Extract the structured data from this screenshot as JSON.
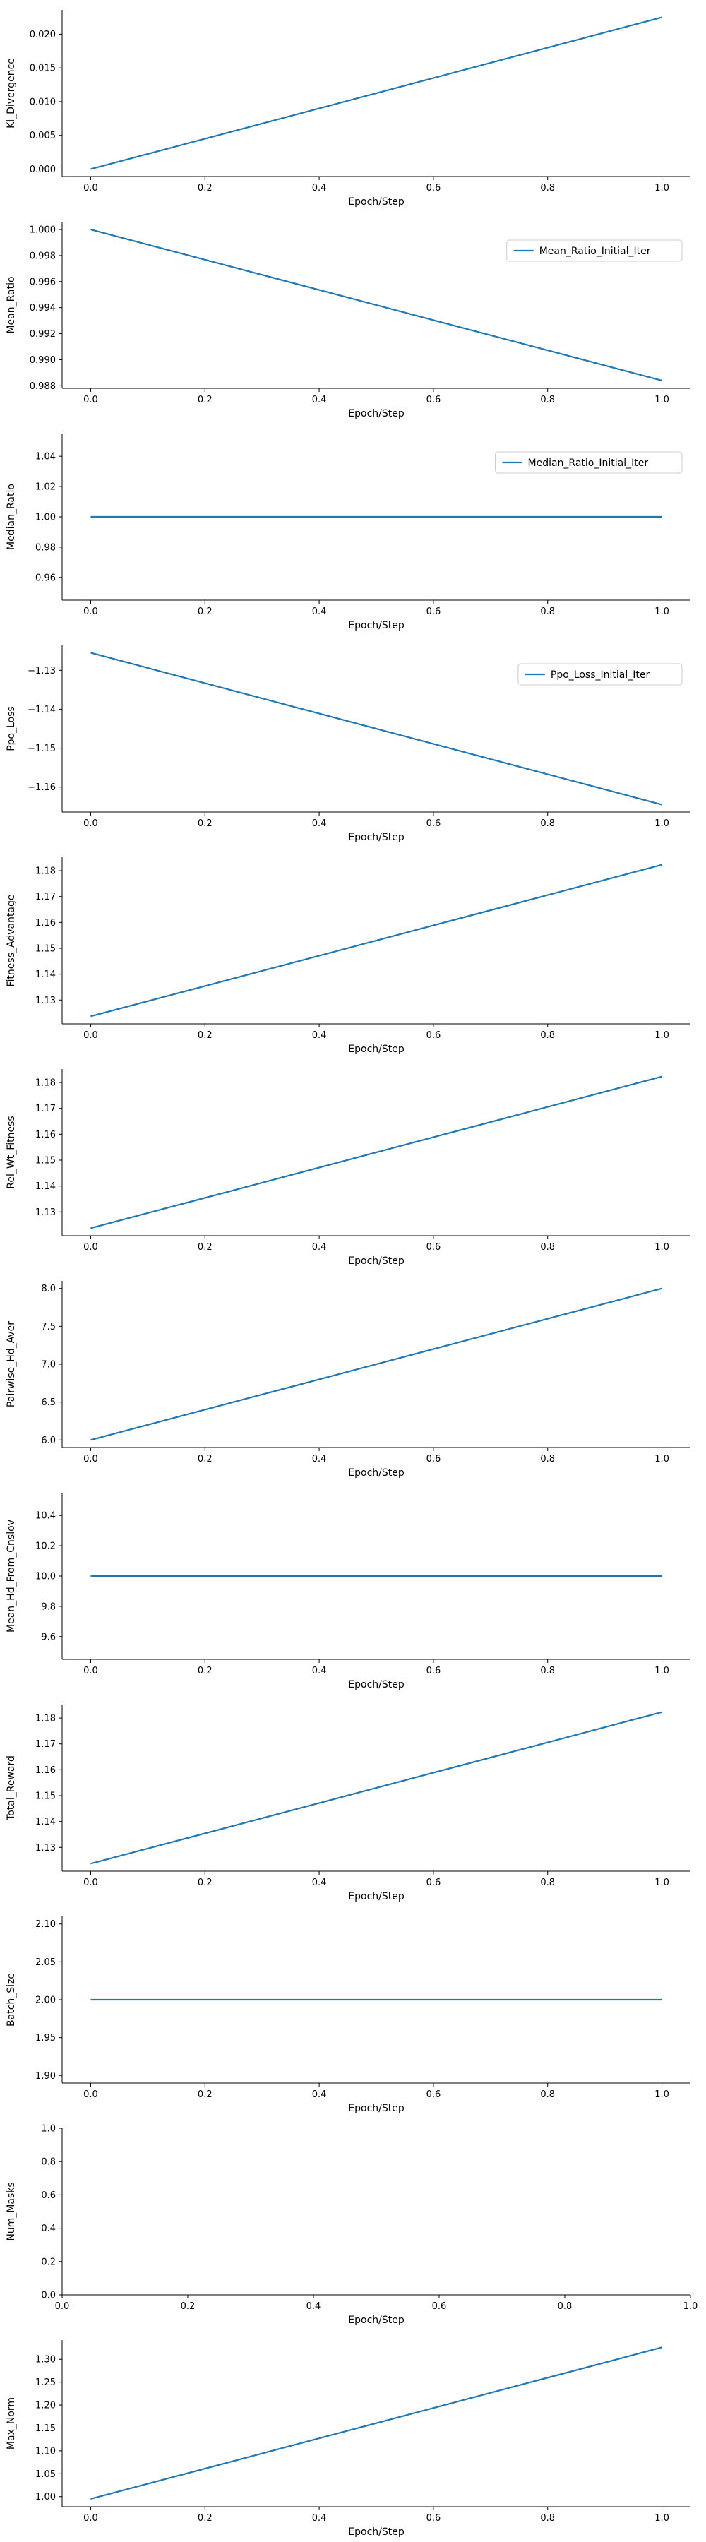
{
  "chart_data": [
    {
      "type": "line",
      "xlabel": "Epoch/Step",
      "ylabel": "Kl_Divergence",
      "xlim": [
        -0.05,
        1.05
      ],
      "ylim": [
        -0.0011,
        0.0236
      ],
      "xticks": [
        0.0,
        0.2,
        0.4,
        0.6,
        0.8,
        1.0
      ],
      "xtick_labels": [
        "0.0",
        "0.2",
        "0.4",
        "0.6",
        "0.8",
        "1.0"
      ],
      "yticks": [
        0.0,
        0.005,
        0.01,
        0.015,
        0.02
      ],
      "ytick_labels": [
        "0.000",
        "0.005",
        "0.010",
        "0.015",
        "0.020"
      ],
      "legend": "",
      "line_color": "#1f77b4",
      "series": [
        {
          "x": [
            0,
            1
          ],
          "y": [
            0.0,
            0.0225
          ]
        }
      ]
    },
    {
      "type": "line",
      "xlabel": "Epoch/Step",
      "ylabel": "Mean_Ratio",
      "xlim": [
        -0.05,
        1.05
      ],
      "ylim": [
        0.9878,
        1.0006
      ],
      "xticks": [
        0.0,
        0.2,
        0.4,
        0.6,
        0.8,
        1.0
      ],
      "xtick_labels": [
        "0.0",
        "0.2",
        "0.4",
        "0.6",
        "0.8",
        "1.0"
      ],
      "yticks": [
        0.988,
        0.99,
        0.992,
        0.994,
        0.996,
        0.998,
        1.0
      ],
      "ytick_labels": [
        "0.988",
        "0.990",
        "0.992",
        "0.994",
        "0.996",
        "0.998",
        "1.000"
      ],
      "legend": "Mean_Ratio_Initial_Iter",
      "legend_position": "top-right",
      "line_color": "#1f77b4",
      "series": [
        {
          "name": "Mean_Ratio_Initial_Iter",
          "x": [
            0,
            1
          ],
          "y": [
            1.0,
            0.9884
          ]
        }
      ]
    },
    {
      "type": "line",
      "xlabel": "Epoch/Step",
      "ylabel": "Median_Ratio",
      "xlim": [
        -0.05,
        1.05
      ],
      "ylim": [
        0.945,
        1.055
      ],
      "xticks": [
        0.0,
        0.2,
        0.4,
        0.6,
        0.8,
        1.0
      ],
      "xtick_labels": [
        "0.0",
        "0.2",
        "0.4",
        "0.6",
        "0.8",
        "1.0"
      ],
      "yticks": [
        0.96,
        0.98,
        1.0,
        1.02,
        1.04
      ],
      "ytick_labels": [
        "0.96",
        "0.98",
        "1.00",
        "1.02",
        "1.04"
      ],
      "legend": "Median_Ratio_Initial_Iter",
      "legend_position": "top-right",
      "line_color": "#1f77b4",
      "series": [
        {
          "name": "Median_Ratio_Initial_Iter",
          "x": [
            0,
            1
          ],
          "y": [
            1.0,
            1.0
          ]
        }
      ]
    },
    {
      "type": "line",
      "xlabel": "Epoch/Step",
      "ylabel": "Ppo_Loss",
      "xlim": [
        -0.05,
        1.05
      ],
      "ylim": [
        -1.1664,
        -1.1236
      ],
      "xticks": [
        0.0,
        0.2,
        0.4,
        0.6,
        0.8,
        1.0
      ],
      "xtick_labels": [
        "0.0",
        "0.2",
        "0.4",
        "0.6",
        "0.8",
        "1.0"
      ],
      "yticks": [
        -1.16,
        -1.15,
        -1.14,
        -1.13
      ],
      "ytick_labels": [
        "−1.16",
        "−1.15",
        "−1.14",
        "−1.13"
      ],
      "legend": "Ppo_Loss_Initial_Iter",
      "legend_position": "top-right",
      "line_color": "#1f77b4",
      "series": [
        {
          "name": "Ppo_Loss_Initial_Iter",
          "x": [
            0,
            1
          ],
          "y": [
            -1.1255,
            -1.1645
          ]
        }
      ]
    },
    {
      "type": "line",
      "xlabel": "Epoch/Step",
      "ylabel": "Fitness_Advantage",
      "xlim": [
        -0.05,
        1.05
      ],
      "ylim": [
        1.1208,
        1.1852
      ],
      "xticks": [
        0.0,
        0.2,
        0.4,
        0.6,
        0.8,
        1.0
      ],
      "xtick_labels": [
        "0.0",
        "0.2",
        "0.4",
        "0.6",
        "0.8",
        "1.0"
      ],
      "yticks": [
        1.13,
        1.14,
        1.15,
        1.16,
        1.17,
        1.18
      ],
      "ytick_labels": [
        "1.13",
        "1.14",
        "1.15",
        "1.16",
        "1.17",
        "1.18"
      ],
      "legend": "",
      "line_color": "#1f77b4",
      "series": [
        {
          "x": [
            0,
            1
          ],
          "y": [
            1.1237,
            1.1823
          ]
        }
      ]
    },
    {
      "type": "line",
      "xlabel": "Epoch/Step",
      "ylabel": "Rel_Wt_Fitness",
      "xlim": [
        -0.05,
        1.05
      ],
      "ylim": [
        1.1208,
        1.1852
      ],
      "xticks": [
        0.0,
        0.2,
        0.4,
        0.6,
        0.8,
        1.0
      ],
      "xtick_labels": [
        "0.0",
        "0.2",
        "0.4",
        "0.6",
        "0.8",
        "1.0"
      ],
      "yticks": [
        1.13,
        1.14,
        1.15,
        1.16,
        1.17,
        1.18
      ],
      "ytick_labels": [
        "1.13",
        "1.14",
        "1.15",
        "1.16",
        "1.17",
        "1.18"
      ],
      "legend": "",
      "line_color": "#1f77b4",
      "series": [
        {
          "x": [
            0,
            1
          ],
          "y": [
            1.1237,
            1.1823
          ]
        }
      ]
    },
    {
      "type": "line",
      "xlabel": "Epoch/Step",
      "ylabel": "Pairwise_Hd_Aver",
      "xlim": [
        -0.05,
        1.05
      ],
      "ylim": [
        5.9,
        8.1
      ],
      "xticks": [
        0.0,
        0.2,
        0.4,
        0.6,
        0.8,
        1.0
      ],
      "xtick_labels": [
        "0.0",
        "0.2",
        "0.4",
        "0.6",
        "0.8",
        "1.0"
      ],
      "yticks": [
        6.0,
        6.5,
        7.0,
        7.5,
        8.0
      ],
      "ytick_labels": [
        "6.0",
        "6.5",
        "7.0",
        "7.5",
        "8.0"
      ],
      "legend": "",
      "line_color": "#1f77b4",
      "series": [
        {
          "x": [
            0,
            1
          ],
          "y": [
            6.0,
            8.0
          ]
        }
      ]
    },
    {
      "type": "line",
      "xlabel": "Epoch/Step",
      "ylabel": "Mean_Hd_From_Cnslov",
      "xlim": [
        -0.05,
        1.05
      ],
      "ylim": [
        9.45,
        10.55
      ],
      "xticks": [
        0.0,
        0.2,
        0.4,
        0.6,
        0.8,
        1.0
      ],
      "xtick_labels": [
        "0.0",
        "0.2",
        "0.4",
        "0.6",
        "0.8",
        "1.0"
      ],
      "yticks": [
        9.6,
        9.8,
        10.0,
        10.2,
        10.4
      ],
      "ytick_labels": [
        "9.6",
        "9.8",
        "10.0",
        "10.2",
        "10.4"
      ],
      "legend": "",
      "line_color": "#1f77b4",
      "series": [
        {
          "x": [
            0,
            1
          ],
          "y": [
            10.0,
            10.0
          ]
        }
      ]
    },
    {
      "type": "line",
      "xlabel": "Epoch/Step",
      "ylabel": "Total_Reward",
      "xlim": [
        -0.05,
        1.05
      ],
      "ylim": [
        1.1208,
        1.1852
      ],
      "xticks": [
        0.0,
        0.2,
        0.4,
        0.6,
        0.8,
        1.0
      ],
      "xtick_labels": [
        "0.0",
        "0.2",
        "0.4",
        "0.6",
        "0.8",
        "1.0"
      ],
      "yticks": [
        1.13,
        1.14,
        1.15,
        1.16,
        1.17,
        1.18
      ],
      "ytick_labels": [
        "1.13",
        "1.14",
        "1.15",
        "1.16",
        "1.17",
        "1.18"
      ],
      "legend": "",
      "line_color": "#1f77b4",
      "series": [
        {
          "x": [
            0,
            1
          ],
          "y": [
            1.1237,
            1.1823
          ]
        }
      ]
    },
    {
      "type": "line",
      "xlabel": "Epoch/Step",
      "ylabel": "Batch_Size",
      "xlim": [
        -0.05,
        1.05
      ],
      "ylim": [
        1.89,
        2.11
      ],
      "xticks": [
        0.0,
        0.2,
        0.4,
        0.6,
        0.8,
        1.0
      ],
      "xtick_labels": [
        "0.0",
        "0.2",
        "0.4",
        "0.6",
        "0.8",
        "1.0"
      ],
      "yticks": [
        1.9,
        1.95,
        2.0,
        2.05,
        2.1
      ],
      "ytick_labels": [
        "1.90",
        "1.95",
        "2.00",
        "2.05",
        "2.10"
      ],
      "legend": "",
      "line_color": "#1f77b4",
      "series": [
        {
          "x": [
            0,
            1
          ],
          "y": [
            2.0,
            2.0
          ]
        }
      ]
    },
    {
      "type": "line",
      "xlabel": "Epoch/Step",
      "ylabel": "Num_Masks",
      "xlim": [
        0.0,
        1.0
      ],
      "ylim": [
        0.0,
        1.0
      ],
      "xticks": [
        0.0,
        0.2,
        0.4,
        0.6,
        0.8,
        1.0
      ],
      "xtick_labels": [
        "0.0",
        "0.2",
        "0.4",
        "0.6",
        "0.8",
        "1.0"
      ],
      "yticks": [
        0.0,
        0.2,
        0.4,
        0.6,
        0.8,
        1.0
      ],
      "ytick_labels": [
        "0.0",
        "0.2",
        "0.4",
        "0.6",
        "0.8",
        "1.0"
      ],
      "legend": "",
      "line_color": "#1f77b4",
      "series": []
    },
    {
      "type": "line",
      "xlabel": "Epoch/Step",
      "ylabel": "Max_Norm",
      "xlim": [
        -0.05,
        1.05
      ],
      "ylim": [
        0.978,
        1.342
      ],
      "xticks": [
        0.0,
        0.2,
        0.4,
        0.6,
        0.8,
        1.0
      ],
      "xtick_labels": [
        "0.0",
        "0.2",
        "0.4",
        "0.6",
        "0.8",
        "1.0"
      ],
      "yticks": [
        1.0,
        1.05,
        1.1,
        1.15,
        1.2,
        1.25,
        1.3
      ],
      "ytick_labels": [
        "1.00",
        "1.05",
        "1.10",
        "1.15",
        "1.20",
        "1.25",
        "1.30"
      ],
      "legend": "",
      "line_color": "#1f77b4",
      "series": [
        {
          "x": [
            0,
            1
          ],
          "y": [
            0.995,
            1.326
          ]
        }
      ]
    }
  ]
}
